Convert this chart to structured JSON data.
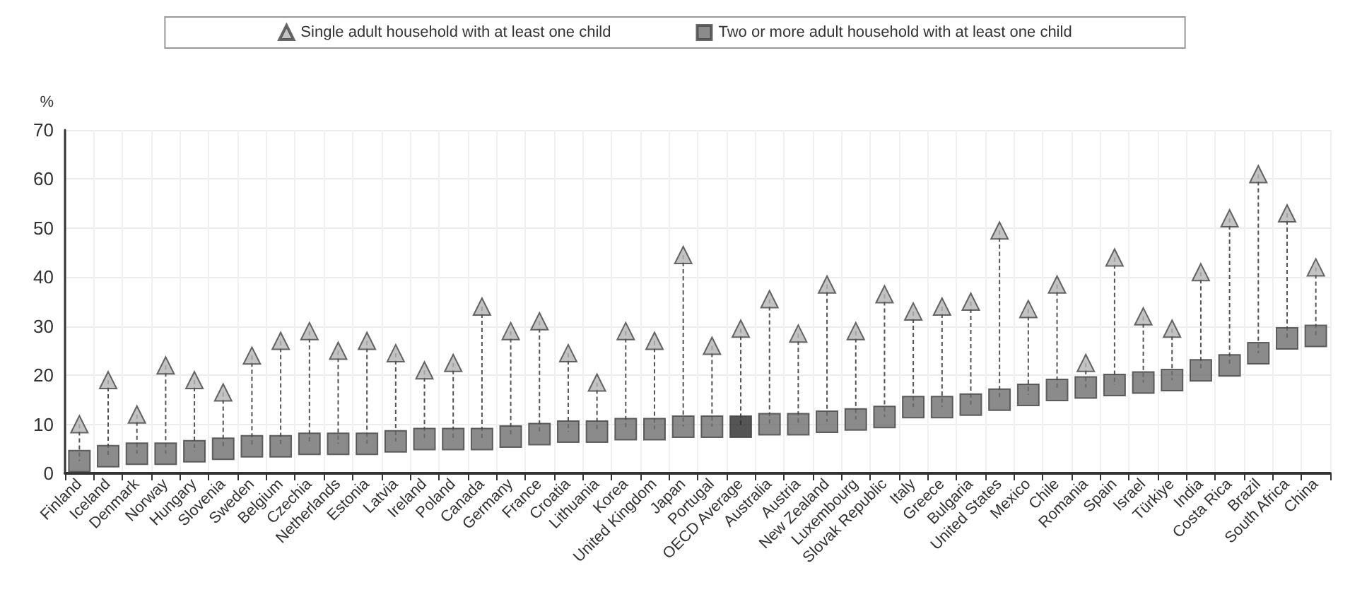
{
  "chart_data": {
    "type": "scatter",
    "ylabel": "%",
    "categories": [
      "Finland",
      "Iceland",
      "Denmark",
      "Norway",
      "Hungary",
      "Slovenia",
      "Sweden",
      "Belgium",
      "Czechia",
      "Netherlands",
      "Estonia",
      "Latvia",
      "Ireland",
      "Poland",
      "Canada",
      "Germany",
      "France",
      "Croatia",
      "Lithuania",
      "Korea",
      "United Kingdom",
      "Japan",
      "Portugal",
      "OECD Average",
      "Australia",
      "Austria",
      "New Zealand",
      "Luxembourg",
      "Slovak Republic",
      "Italy",
      "Greece",
      "Bulgaria",
      "United States",
      "Mexico",
      "Chile",
      "Romania",
      "Spain",
      "Israel",
      "Türkiye",
      "India",
      "Costa Rica",
      "Brazil",
      "South Africa",
      "China"
    ],
    "series": [
      {
        "name": "Single adult household with at least one child",
        "color": "#b4b4b4",
        "marker": "triangle",
        "values": [
          10,
          19,
          12,
          22,
          19,
          16.5,
          24,
          27,
          29,
          25,
          27,
          24.5,
          21,
          22.5,
          34,
          29,
          31,
          24.5,
          18.5,
          29,
          27,
          44.5,
          26,
          29.5,
          35.5,
          28.5,
          38.5,
          29,
          36.5,
          33,
          34,
          35,
          49.5,
          33.5,
          38.5,
          22.5,
          44,
          32,
          29.5,
          41,
          52,
          61,
          53,
          42
        ]
      },
      {
        "name": "Two or more adult household with at least one child",
        "color": "#6e6e6e",
        "marker": "square",
        "colors": [
          "#6e6e6e",
          "#6e6e6e",
          "#6e6e6e",
          "#6e6e6e",
          "#6e6e6e",
          "#6e6e6e",
          "#6e6e6e",
          "#6e6e6e",
          "#6e6e6e",
          "#6e6e6e",
          "#6e6e6e",
          "#6e6e6e",
          "#6e6e6e",
          "#6e6e6e",
          "#6e6e6e",
          "#6e6e6e",
          "#6e6e6e",
          "#6e6e6e",
          "#6e6e6e",
          "#6e6e6e",
          "#6e6e6e",
          "#6e6e6e",
          "#6e6e6e",
          "#2b2b2b",
          "#6e6e6e",
          "#6e6e6e",
          "#6e6e6e",
          "#6e6e6e",
          "#6e6e6e",
          "#6e6e6e",
          "#6e6e6e",
          "#6e6e6e",
          "#6e6e6e",
          "#6e6e6e",
          "#6e6e6e",
          "#6e6e6e",
          "#6e6e6e",
          "#6e6e6e",
          "#6e6e6e",
          "#6e6e6e",
          "#6e6e6e",
          "#6e6e6e",
          "#6e6e6e",
          "#6e6e6e"
        ],
        "values": [
          2.5,
          3.5,
          4,
          4,
          4.5,
          5,
          5.5,
          5.5,
          6,
          6,
          6,
          6.5,
          7,
          7,
          7,
          7.5,
          8,
          8.5,
          8.5,
          9,
          9,
          9.5,
          9.5,
          9.5,
          10,
          10,
          10.5,
          11,
          11.5,
          13.5,
          13.5,
          14,
          15,
          16,
          17,
          17.5,
          18,
          18.5,
          19,
          21,
          22,
          24.5,
          27.5,
          28
        ]
      }
    ],
    "ylim": [
      0,
      70
    ],
    "yticks": [
      0,
      10,
      20,
      30,
      40,
      50,
      60,
      70
    ],
    "grid": true,
    "legend": "top"
  }
}
